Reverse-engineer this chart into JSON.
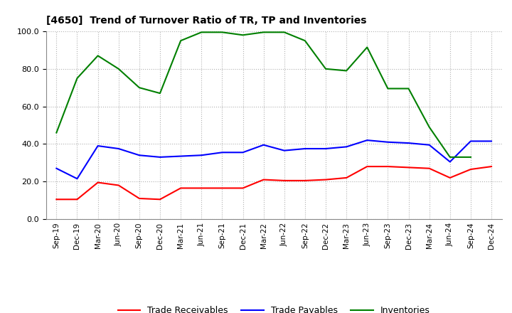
{
  "title": "[4650]  Trend of Turnover Ratio of TR, TP and Inventories",
  "x_labels": [
    "Sep-19",
    "Dec-19",
    "Mar-20",
    "Jun-20",
    "Sep-20",
    "Dec-20",
    "Mar-21",
    "Jun-21",
    "Sep-21",
    "Dec-21",
    "Mar-22",
    "Jun-22",
    "Sep-22",
    "Dec-22",
    "Mar-23",
    "Jun-23",
    "Sep-23",
    "Dec-23",
    "Mar-24",
    "Jun-24",
    "Sep-24",
    "Dec-24"
  ],
  "trade_receivables": [
    10.5,
    10.5,
    19.5,
    18.0,
    11.0,
    10.5,
    16.5,
    16.5,
    16.5,
    16.5,
    21.0,
    20.5,
    20.5,
    21.0,
    22.0,
    28.0,
    28.0,
    27.5,
    27.0,
    22.0,
    26.5,
    28.0
  ],
  "trade_payables": [
    27.0,
    21.5,
    39.0,
    37.5,
    34.0,
    33.0,
    33.5,
    34.0,
    35.5,
    35.5,
    39.5,
    36.5,
    37.5,
    37.5,
    38.5,
    42.0,
    41.0,
    40.5,
    39.5,
    30.5,
    41.5,
    41.5
  ],
  "inventories": [
    46.0,
    75.0,
    87.0,
    80.0,
    70.0,
    67.0,
    95.0,
    99.5,
    99.5,
    98.0,
    99.5,
    99.5,
    95.0,
    80.0,
    79.0,
    91.5,
    69.5,
    69.5,
    49.0,
    33.0,
    33.0,
    null
  ],
  "ylim": [
    0.0,
    100.0
  ],
  "yticks": [
    0.0,
    20.0,
    40.0,
    60.0,
    80.0,
    100.0
  ],
  "color_tr": "#ff0000",
  "color_tp": "#0000ff",
  "color_inv": "#008000",
  "legend_labels": [
    "Trade Receivables",
    "Trade Payables",
    "Inventories"
  ],
  "bg_color": "#ffffff",
  "grid_color": "#b0b0b0"
}
